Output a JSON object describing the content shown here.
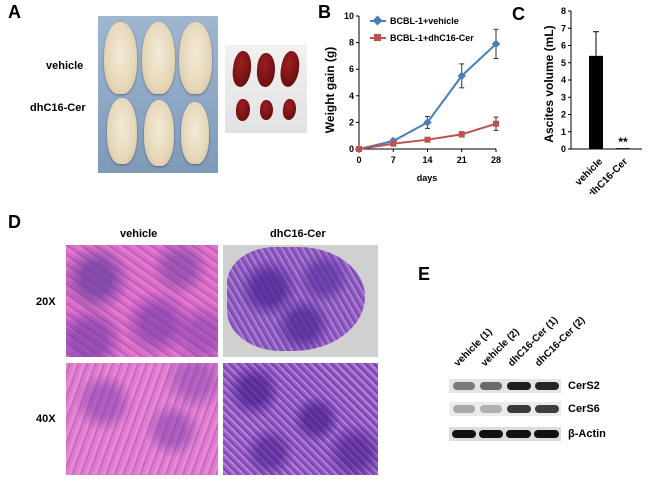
{
  "panels": {
    "A": {
      "letter": "A",
      "row_labels": [
        "vehicle",
        "dhC16-Cer"
      ]
    },
    "B": {
      "letter": "B",
      "ylabel": "Weight gain (g)",
      "xlabel": "days",
      "legend": [
        "BCBL-1+vehicle",
        "BCBL-1+dhC16-Cer"
      ]
    },
    "C": {
      "letter": "C",
      "ylabel": "Ascites volume (mL)",
      "categories": [
        "vehicle",
        "dhC16-Cer"
      ],
      "significance": "**"
    },
    "D": {
      "letter": "D",
      "col_labels": [
        "vehicle",
        "dhC16-Cer"
      ],
      "row_labels": [
        "20X",
        "40X"
      ]
    },
    "E": {
      "letter": "E",
      "lanes": [
        "vehicle (1)",
        "vehicle (2)",
        "dhC16-Cer (1)",
        "dhC16-Cer (2)"
      ],
      "proteins": [
        "CerS2",
        "CerS6",
        "β-Actin"
      ]
    }
  },
  "colors": {
    "vehicle_series": "#4a7ebb",
    "treated_series": "#c0504d",
    "bar": "#000000",
    "he_pink": "#d65fc0",
    "he_purple": "#6a3fa0"
  },
  "chart_data": [
    {
      "type": "line",
      "x": [
        0,
        7,
        14,
        21,
        28
      ],
      "x_ticks": [
        "0",
        "7",
        "14",
        "21",
        "28"
      ],
      "y_ticks": [
        "0",
        "2",
        "4",
        "6",
        "8",
        "10"
      ],
      "ylim": [
        0,
        10
      ],
      "xlabel": "days",
      "ylabel": "Weight gain (g)",
      "legend_position": "top-left",
      "series": [
        {
          "name": "BCBL-1+vehicle",
          "values": [
            0,
            0.6,
            2.0,
            5.5,
            7.9
          ],
          "errors": [
            0,
            0.15,
            0.45,
            0.9,
            1.1
          ],
          "marker": "diamond",
          "color": "#4a7ebb"
        },
        {
          "name": "BCBL-1+dhC16-Cer",
          "values": [
            0,
            0.4,
            0.7,
            1.1,
            1.9
          ],
          "errors": [
            0,
            0.1,
            0.15,
            0.2,
            0.5
          ],
          "marker": "square",
          "color": "#c0504d"
        }
      ]
    },
    {
      "type": "bar",
      "categories": [
        "vehicle",
        "dhC16-Cer"
      ],
      "values": [
        5.4,
        0.05
      ],
      "errors": [
        1.4,
        0
      ],
      "y_ticks": [
        "0",
        "1",
        "2",
        "3",
        "4",
        "5",
        "6",
        "7",
        "8"
      ],
      "ylim": [
        0,
        8
      ],
      "ylabel": "Ascites volume (mL)",
      "annotations": [
        "**"
      ]
    }
  ]
}
